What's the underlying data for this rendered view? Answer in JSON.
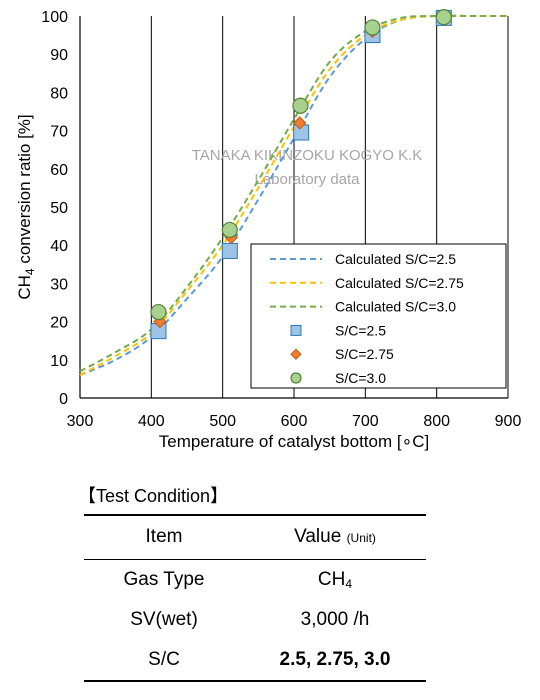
{
  "chart_data": {
    "type": "scatter",
    "xlabel": "Temperature of catalyst bottom [∘C]",
    "ylabel": "CH4 conversion ratio [%]",
    "xlim": [
      300,
      900
    ],
    "ylim": [
      0,
      100
    ],
    "xticks": [
      300,
      400,
      500,
      600,
      700,
      800,
      900
    ],
    "yticks": [
      0,
      10,
      20,
      30,
      40,
      50,
      60,
      70,
      80,
      90,
      100
    ],
    "grid": "x-only",
    "legend_position": "bottom-right",
    "watermark": [
      "TANAKA KIKINZOKU KOGYO K.K",
      "Laboratory data"
    ],
    "series": [
      {
        "name": "Calculated S/C=2.5",
        "kind": "line",
        "style": "dashed",
        "color": "#5B9BD5",
        "x_points": [
          300,
          350,
          400,
          450,
          500,
          550,
          600,
          650,
          700,
          750,
          800,
          850,
          900
        ],
        "y": [
          6,
          10,
          16,
          26,
          37,
          52,
          68,
          84,
          94,
          99,
          100,
          100,
          100
        ]
      },
      {
        "name": "Calculated S/C=2.75",
        "kind": "line",
        "style": "dashed",
        "color": "#FFC000",
        "x_points": [
          300,
          350,
          400,
          450,
          500,
          550,
          600,
          650,
          700,
          750,
          800,
          850,
          900
        ],
        "y": [
          6,
          11,
          17,
          28,
          40,
          55,
          71,
          86,
          95,
          99,
          100,
          100,
          100
        ]
      },
      {
        "name": "Calculated S/C=3.0",
        "kind": "line",
        "style": "dashed",
        "color": "#70AD47",
        "x_points": [
          300,
          350,
          400,
          450,
          500,
          550,
          600,
          650,
          700,
          750,
          800,
          850,
          900
        ],
        "y": [
          7,
          12,
          18,
          29,
          42,
          57,
          73,
          88,
          96,
          99.5,
          100,
          100,
          100
        ]
      },
      {
        "name": "S/C=2.5",
        "kind": "marker",
        "marker": "square",
        "fill": "#9DC3E6",
        "stroke": "#2E75B6",
        "x_points": [
          410,
          510,
          610,
          710,
          810
        ],
        "y": [
          17.5,
          38.5,
          69.5,
          95,
          99.5
        ]
      },
      {
        "name": "S/C=2.75",
        "kind": "marker",
        "marker": "diamond",
        "fill": "#ED7D31",
        "stroke": "#C55A11",
        "x_points": [
          412,
          512,
          608,
          710,
          810
        ],
        "y": [
          20,
          42,
          72,
          96,
          99.5
        ]
      },
      {
        "name": "S/C=3.0",
        "kind": "marker",
        "marker": "circle",
        "fill": "#A9D18E",
        "stroke": "#548235",
        "x_points": [
          410,
          510,
          609,
          710,
          810
        ],
        "y": [
          22.5,
          44,
          76.5,
          97,
          99.7
        ]
      }
    ]
  },
  "test_condition": {
    "title": "【Test Condition】",
    "headers": {
      "item": "Item",
      "value": "Value",
      "unit": "(Unit)"
    },
    "rows": [
      {
        "item": "Gas Type",
        "value": "CH",
        "value_sub": "4"
      },
      {
        "item": "SV(wet)",
        "value": "3,000 /h"
      },
      {
        "item": "S/C",
        "value": "2.5, 2.75, 3.0"
      }
    ]
  }
}
